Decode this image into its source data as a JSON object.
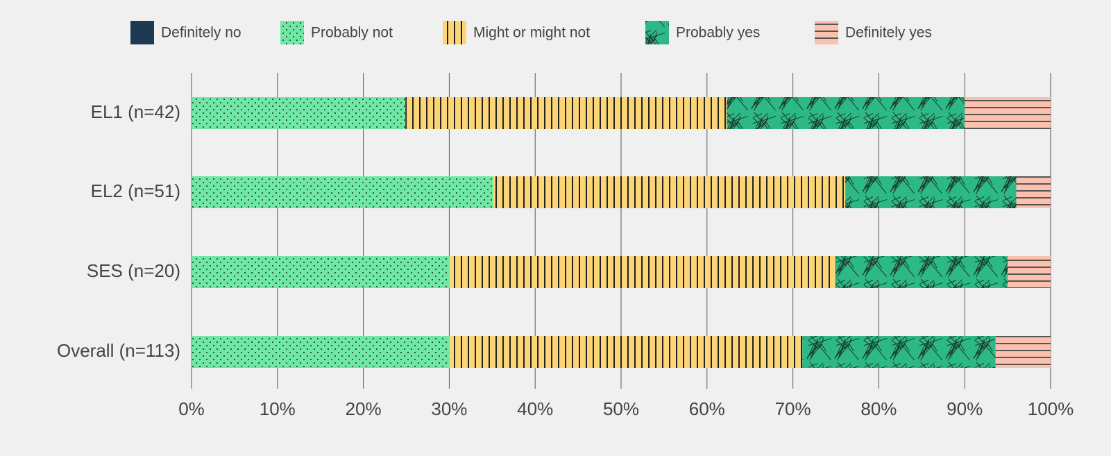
{
  "chart_data": {
    "type": "stacked-bar-horizontal",
    "categories": [
      "EL1 (n=42)",
      "EL2 (n=51)",
      "SES (n=20)",
      "Overall (n=113)"
    ],
    "series": [
      {
        "name": "Definitely no",
        "color": "#1d3a52",
        "values": [
          0,
          0,
          0,
          0
        ]
      },
      {
        "name": "Probably not",
        "color": "#6ee8a4",
        "values": [
          24.9,
          35.1,
          30.0,
          30.0
        ]
      },
      {
        "name": "Might or might not",
        "color": "#fcd577",
        "values": [
          37.4,
          41.0,
          45.0,
          41.1
        ]
      },
      {
        "name": "Probably yes",
        "color": "#2db887",
        "values": [
          27.7,
          19.9,
          20.0,
          22.5
        ]
      },
      {
        "name": "Definitely yes",
        "color": "#fbc0ae",
        "values": [
          10.0,
          4.0,
          5.0,
          6.4
        ]
      }
    ],
    "xlim": [
      0,
      100
    ],
    "xticks": [
      {
        "value": 0,
        "label": "0%"
      },
      {
        "value": 10,
        "label": "10%"
      },
      {
        "value": 20,
        "label": "20%"
      },
      {
        "value": 30,
        "label": "30%"
      },
      {
        "value": 40,
        "label": "40%"
      },
      {
        "value": 50,
        "label": "50%"
      },
      {
        "value": 60,
        "label": "60%"
      },
      {
        "value": 70,
        "label": "70%"
      },
      {
        "value": 80,
        "label": "80%"
      },
      {
        "value": 90,
        "label": "90%"
      },
      {
        "value": 100,
        "label": "100%"
      }
    ],
    "grid": true,
    "legend": "top"
  }
}
